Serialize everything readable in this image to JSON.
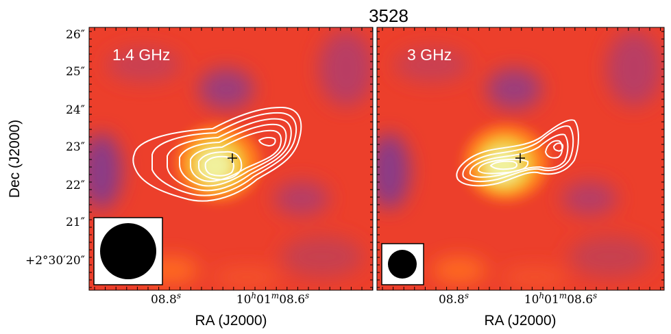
{
  "title": "3528",
  "colors": {
    "map_low": "#7a3a8a",
    "map_mid": "#f03e2a",
    "map_high": "#f2f2a0",
    "contour": "#ffffff",
    "marker": "#000000",
    "beam": "#000000",
    "beam_box_bg": "#ffffff"
  },
  "chart_data": [
    {
      "type": "heatmap",
      "panel_label": "1.4 GHz",
      "xlabel": "RA (J2000)",
      "ylabel": "Dec (J2000)",
      "x_ticklabels": [
        "08.8",
        "10h01m08.6"
      ],
      "y_ticklabels": [
        "26″",
        "25″",
        "24″",
        "23″",
        "22″",
        "21″",
        "+2°30′20″"
      ],
      "contours": {
        "count": 8,
        "color": "white"
      },
      "marker": "black cross at emission peak",
      "beam": {
        "shape": "circle",
        "relative_size": "large",
        "location": "lower-left"
      }
    },
    {
      "type": "heatmap",
      "panel_label": "3 GHz",
      "xlabel": "RA (J2000)",
      "ylabel": "",
      "x_ticklabels": [
        "08.8",
        "10h01m08.6"
      ],
      "y_ticklabels": [],
      "contours": {
        "count": 6,
        "color": "white"
      },
      "marker": "black cross at emission peak",
      "beam": {
        "shape": "circle",
        "relative_size": "small",
        "location": "lower-left"
      }
    }
  ]
}
